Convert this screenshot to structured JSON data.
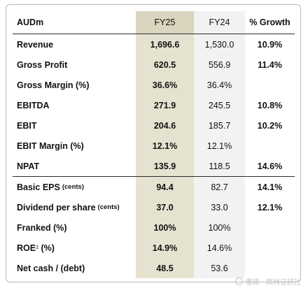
{
  "table": {
    "header": {
      "label": "AUDm",
      "fy25": "FY25",
      "fy24": "FY24",
      "growth": "% Growth"
    },
    "rows": [
      {
        "label": "Revenue",
        "sub": "",
        "sup": "",
        "fy25": "1,696.6",
        "fy24": "1,530.0",
        "growth": "10.9%"
      },
      {
        "label": "Gross Profit",
        "sub": "",
        "sup": "",
        "fy25": "620.5",
        "fy24": "556.9",
        "growth": "11.4%"
      },
      {
        "label": "Gross Margin (%)",
        "sub": "",
        "sup": "",
        "fy25": "36.6%",
        "fy24": "36.4%",
        "growth": ""
      },
      {
        "label": "EBITDA",
        "sub": "",
        "sup": "",
        "fy25": "271.9",
        "fy24": "245.5",
        "growth": "10.8%"
      },
      {
        "label": "EBIT",
        "sub": "",
        "sup": "",
        "fy25": "204.6",
        "fy24": "185.7",
        "growth": "10.2%"
      },
      {
        "label": "EBIT Margin (%)",
        "sub": "",
        "sup": "",
        "fy25": "12.1%",
        "fy24": "12.1%",
        "growth": ""
      },
      {
        "label": "NPAT",
        "sub": "",
        "sup": "",
        "fy25": "135.9",
        "fy24": "118.5",
        "growth": "14.6%"
      },
      {
        "label": "Basic EPS",
        "sub": "(cents)",
        "sup": "",
        "fy25": "94.4",
        "fy24": "82.7",
        "growth": "14.1%"
      },
      {
        "label": "Dividend per share",
        "sub": "(cents)",
        "sup": "",
        "fy25": "37.0",
        "fy24": "33.0",
        "growth": "12.1%"
      },
      {
        "label": "Franked (%)",
        "sub": "",
        "sup": "",
        "fy25": "100%",
        "fy24": "100%",
        "growth": ""
      },
      {
        "label": "ROE",
        "sub": "",
        "sup": "2",
        "suffix": " (%)",
        "fy25": "14.9%",
        "fy24": "14.6%",
        "growth": ""
      },
      {
        "label": "Net cash / (debt)",
        "sub": "",
        "sup": "",
        "fy25": "48.5",
        "fy24": "53.6",
        "growth": ""
      }
    ]
  },
  "watermark": {
    "text": "雪球 · 南林证研社"
  }
}
